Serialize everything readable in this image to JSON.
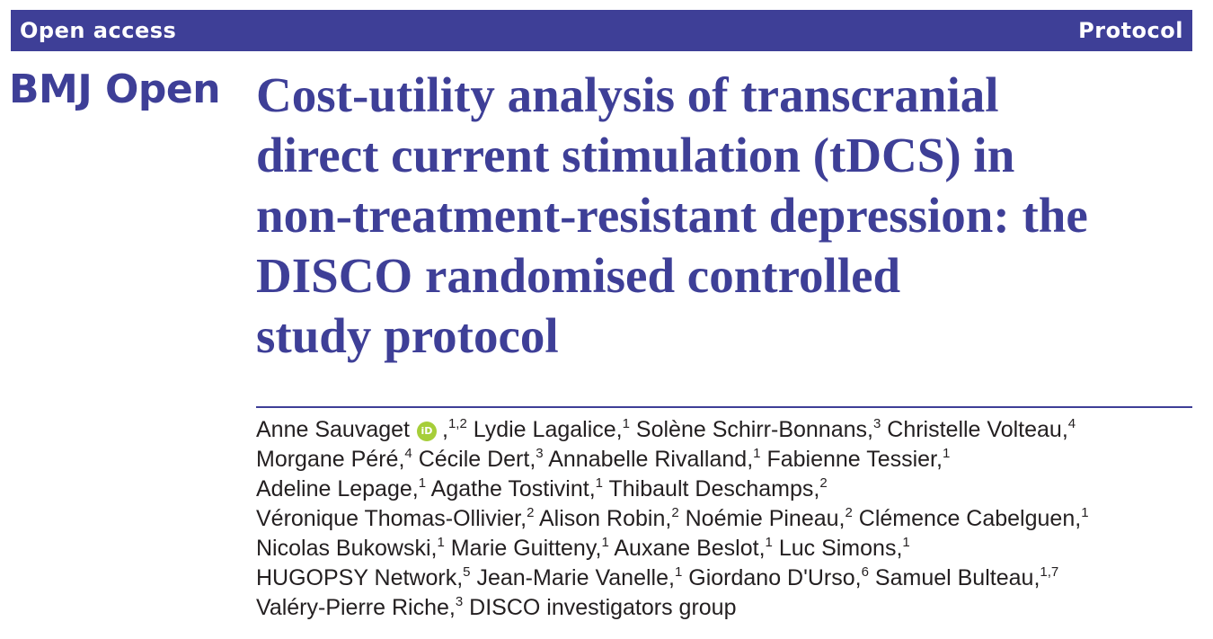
{
  "header": {
    "left_label": "Open access",
    "right_label": "Protocol"
  },
  "journal": {
    "name": "BMJ Open"
  },
  "article": {
    "title_lines": [
      "Cost-utility analysis of transcranial",
      "direct current stimulation (tDCS) in",
      "non-treatment-resistant depression: the",
      "DISCO randomised controlled",
      "study protocol"
    ]
  },
  "orcid": {
    "icon": "orcid-icon",
    "color": "#a6ce39",
    "glyph": "iD"
  },
  "colors": {
    "accent": "#3e3f97",
    "text": "#231f20",
    "banner_text": "#ffffff"
  },
  "authors": {
    "lines": [
      [
        {
          "name": "Anne Sauvaget",
          "orcid": true,
          "aff": "1,2"
        },
        {
          "name": "Lydie Lagalice",
          "aff": "1"
        },
        {
          "name": "Solène Schirr-Bonnans",
          "aff": "3"
        },
        {
          "name": "Christelle Volteau",
          "aff": "4"
        }
      ],
      [
        {
          "name": "Morgane Péré",
          "aff": "4"
        },
        {
          "name": "Cécile Dert",
          "aff": "3"
        },
        {
          "name": "Annabelle Rivalland",
          "aff": "1"
        },
        {
          "name": "Fabienne Tessier",
          "aff": "1"
        }
      ],
      [
        {
          "name": "Adeline Lepage",
          "aff": "1"
        },
        {
          "name": "Agathe Tostivint",
          "aff": "1"
        },
        {
          "name": "Thibault Deschamps",
          "aff": "2"
        }
      ],
      [
        {
          "name": "Véronique Thomas-Ollivier",
          "aff": "2"
        },
        {
          "name": "Alison Robin",
          "aff": "2"
        },
        {
          "name": "Noémie Pineau",
          "aff": "2"
        },
        {
          "name": "Clémence Cabelguen",
          "aff": "1"
        }
      ],
      [
        {
          "name": "Nicolas Bukowski",
          "aff": "1"
        },
        {
          "name": "Marie Guitteny",
          "aff": "1"
        },
        {
          "name": "Auxane Beslot",
          "aff": "1"
        },
        {
          "name": "Luc Simons",
          "aff": "1"
        }
      ],
      [
        {
          "name": "HUGOPSY Network",
          "aff": "5"
        },
        {
          "name": "Jean-Marie Vanelle",
          "aff": "1"
        },
        {
          "name": "Giordano D'Urso",
          "aff": "6"
        },
        {
          "name": "Samuel Bulteau",
          "aff": "1,7"
        }
      ],
      [
        {
          "name": "Valéry-Pierre Riche",
          "aff": "3"
        },
        {
          "name": "DISCO investigators group",
          "aff": ""
        }
      ]
    ]
  }
}
